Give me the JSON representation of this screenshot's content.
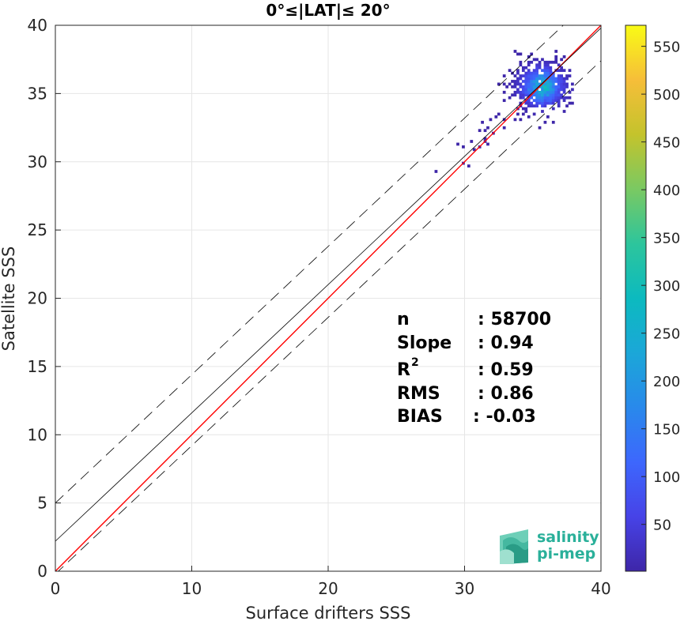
{
  "chart_data": {
    "type": "heatmap",
    "title": "0°≤|LAT|≤ 20°",
    "xlabel": "Surface drifters SSS",
    "ylabel": "Satellite SSS",
    "xlim": [
      0,
      40
    ],
    "ylim": [
      0,
      40
    ],
    "xticks": [
      "0",
      "10",
      "20",
      "30",
      "40"
    ],
    "yticks": [
      "0",
      "5",
      "10",
      "15",
      "20",
      "25",
      "30",
      "35",
      "40"
    ],
    "grid": true,
    "colorbar": {
      "colormap": "parula",
      "range": [
        1,
        572
      ],
      "ticks": [
        "50",
        "100",
        "150",
        "200",
        "250",
        "300",
        "350",
        "400",
        "450",
        "500",
        "550"
      ]
    },
    "lines": [
      {
        "label": "one-to-one",
        "color": "#ff0000",
        "slope": 1,
        "intercept": 0,
        "style": "solid"
      },
      {
        "label": "regression fit",
        "color": "#000000",
        "slope": 0.94,
        "intercept": 2.2,
        "style": "solid"
      },
      {
        "label": "upper bound",
        "color": "#000000",
        "slope": 0.94,
        "intercept": 5.0,
        "style": "dashed"
      },
      {
        "label": "lower bound",
        "color": "#000000",
        "slope": 0.94,
        "intercept": -0.2,
        "style": "dashed"
      }
    ],
    "density": {
      "center": [
        35.6,
        35.4
      ],
      "spread_x": 1.1,
      "spread_y": 1.0,
      "tail_start": [
        26,
        30
      ],
      "max_count": 572
    },
    "stats": [
      {
        "name": "n",
        "value": ": 58700"
      },
      {
        "name": "Slope",
        "value": ": 0.94"
      },
      {
        "name": "R",
        "sup": "2",
        "value": ": 0.59"
      },
      {
        "name": "RMS",
        "value": ": 0.86"
      },
      {
        "name": "BIAS",
        "value": ": -0.03"
      }
    ]
  },
  "logo": {
    "line1": "salinity",
    "line2": "pi-mep",
    "color": "#2ab09a"
  }
}
